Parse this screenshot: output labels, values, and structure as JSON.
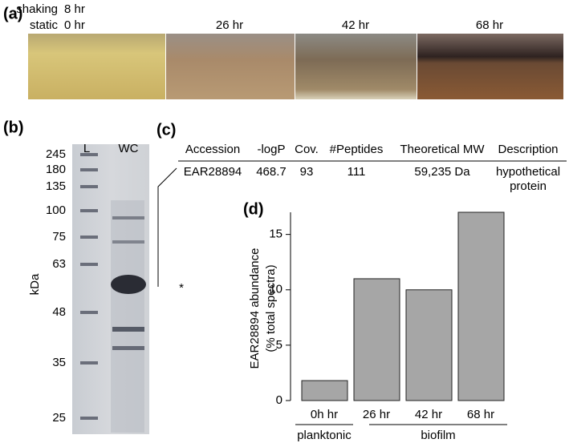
{
  "panel_a": {
    "label": "(a)",
    "rows": [
      {
        "condition": "shaking",
        "time": "8 hr"
      },
      {
        "condition": "static",
        "time": "0 hr"
      }
    ],
    "times": [
      "26 hr",
      "42 hr",
      "68 hr"
    ]
  },
  "panel_b": {
    "label": "(b)",
    "lanes": [
      "L",
      "WC"
    ],
    "markers": [
      245,
      180,
      135,
      100,
      75,
      63,
      48,
      35,
      25
    ],
    "axis_label": "kDa",
    "annotation": "*"
  },
  "panel_c": {
    "label": "(c)",
    "header": [
      "Accession",
      "-logP",
      "Cov.",
      "#Peptides",
      "Theoretical MW",
      "Description"
    ],
    "row": [
      "EAR28894",
      "468.7",
      "93",
      "111",
      "59,235 Da",
      [
        "hypothetical",
        "protein"
      ]
    ]
  },
  "chart_data": {
    "type": "bar",
    "label": "(d)",
    "y_label": [
      "EAR28894 abundance",
      "(% total spectra)"
    ],
    "categories": [
      "0h hr",
      "26 hr",
      "42 hr",
      "68 hr"
    ],
    "values": [
      1.8,
      11,
      10,
      17
    ],
    "color": "#a6a6a6",
    "ylim": [
      0,
      17
    ],
    "yticks": [
      0,
      5,
      10,
      15
    ],
    "group_labels": [
      "planktonic",
      "biofilm"
    ]
  }
}
